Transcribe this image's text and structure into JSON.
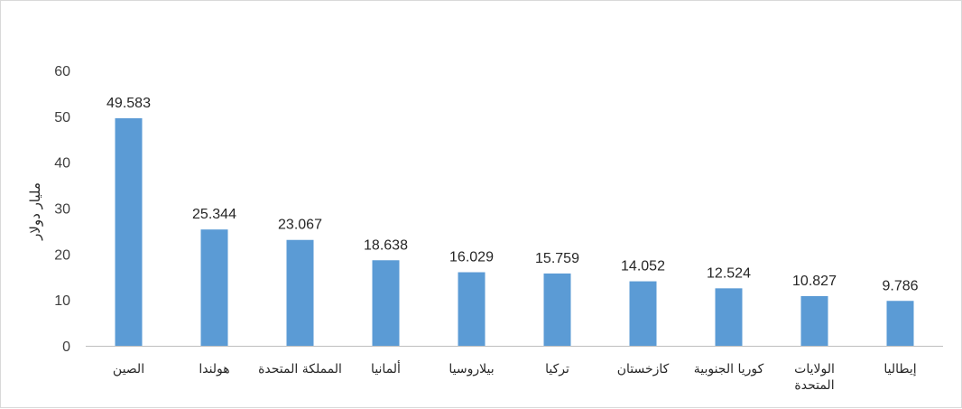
{
  "chart_data": {
    "type": "bar",
    "title": "",
    "xlabel": "",
    "ylabel": "مليار دولار",
    "ylim": [
      0,
      60
    ],
    "yticks": [
      0,
      10,
      20,
      30,
      40,
      50,
      60
    ],
    "grid": false,
    "legend": "none",
    "bar_color": "#5b9bd5",
    "categories": [
      [
        "الصين"
      ],
      [
        "هولندا"
      ],
      [
        "المملكة المتحدة"
      ],
      [
        "ألمانيا"
      ],
      [
        "بيلاروسيا"
      ],
      [
        "تركيا"
      ],
      [
        "كازخستان"
      ],
      [
        "كوريا الجنوبية"
      ],
      [
        "الولايات",
        "المتحدة"
      ],
      [
        "إيطاليا"
      ]
    ],
    "values": [
      49.583,
      25.344,
      23.067,
      18.638,
      16.029,
      15.759,
      14.052,
      12.524,
      10.827,
      9.786
    ],
    "data_labels": [
      "49.583",
      "25.344",
      "23.067",
      "18.638",
      "16.029",
      "15.759",
      "14.052",
      "12.524",
      "10.827",
      "9.786"
    ]
  }
}
